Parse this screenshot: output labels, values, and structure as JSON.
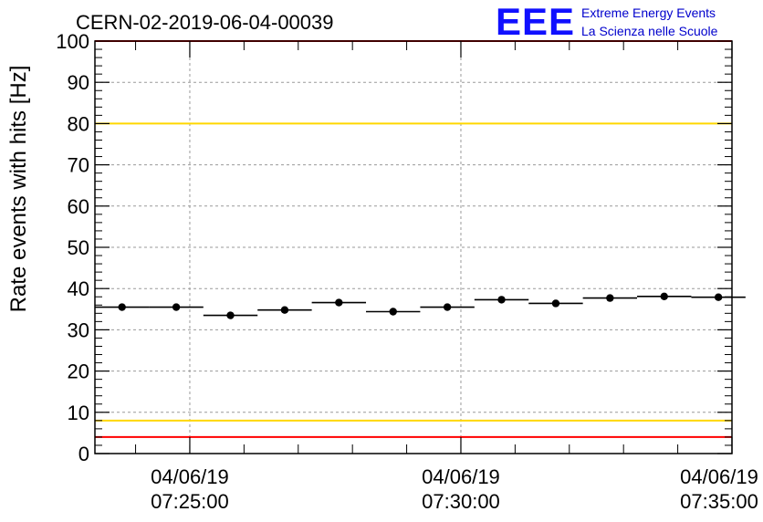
{
  "chart_data": {
    "type": "scatter",
    "title": "CERN-02-2019-06-04-00039",
    "ylabel": "Rate events with hits [Hz]",
    "xlabel": "",
    "ylim": [
      0,
      100
    ],
    "yticks": [
      0,
      10,
      20,
      30,
      40,
      50,
      60,
      70,
      80,
      90,
      100
    ],
    "xlim": [
      "2019-06-04 07:23:15",
      "2019-06-04 07:35:00"
    ],
    "xticks": [
      {
        "date": "04/06/19",
        "time": "07:25:00"
      },
      {
        "date": "04/06/19",
        "time": "07:30:00"
      },
      {
        "date": "04/06/19",
        "time": "07:35:00"
      }
    ],
    "grid": true,
    "series": [
      {
        "points": [
          {
            "x": "07:23:45",
            "y": 35.5
          },
          {
            "x": "07:24:45",
            "y": 35.5
          },
          {
            "x": "07:25:45",
            "y": 33.5
          },
          {
            "x": "07:26:45",
            "y": 34.8
          },
          {
            "x": "07:27:45",
            "y": 36.6
          },
          {
            "x": "07:28:45",
            "y": 34.4
          },
          {
            "x": "07:29:45",
            "y": 35.5
          },
          {
            "x": "07:30:45",
            "y": 37.3
          },
          {
            "x": "07:31:45",
            "y": 36.4
          },
          {
            "x": "07:32:45",
            "y": 37.7
          },
          {
            "x": "07:33:45",
            "y": 38.1
          },
          {
            "x": "07:34:45",
            "y": 37.9
          }
        ],
        "xerr_seconds": 30,
        "color": "#000000"
      }
    ],
    "reference_lines": [
      {
        "y": 100,
        "color": "#ff0000"
      },
      {
        "y": 80,
        "color": "#ffd700"
      },
      {
        "y": 8,
        "color": "#ffd700"
      },
      {
        "y": 4,
        "color": "#ff0000"
      }
    ]
  },
  "logo": {
    "mark": "EEE",
    "line1": "Extreme Energy Events",
    "line2": "La Scienza nelle Scuole",
    "color": "#1010ff"
  }
}
